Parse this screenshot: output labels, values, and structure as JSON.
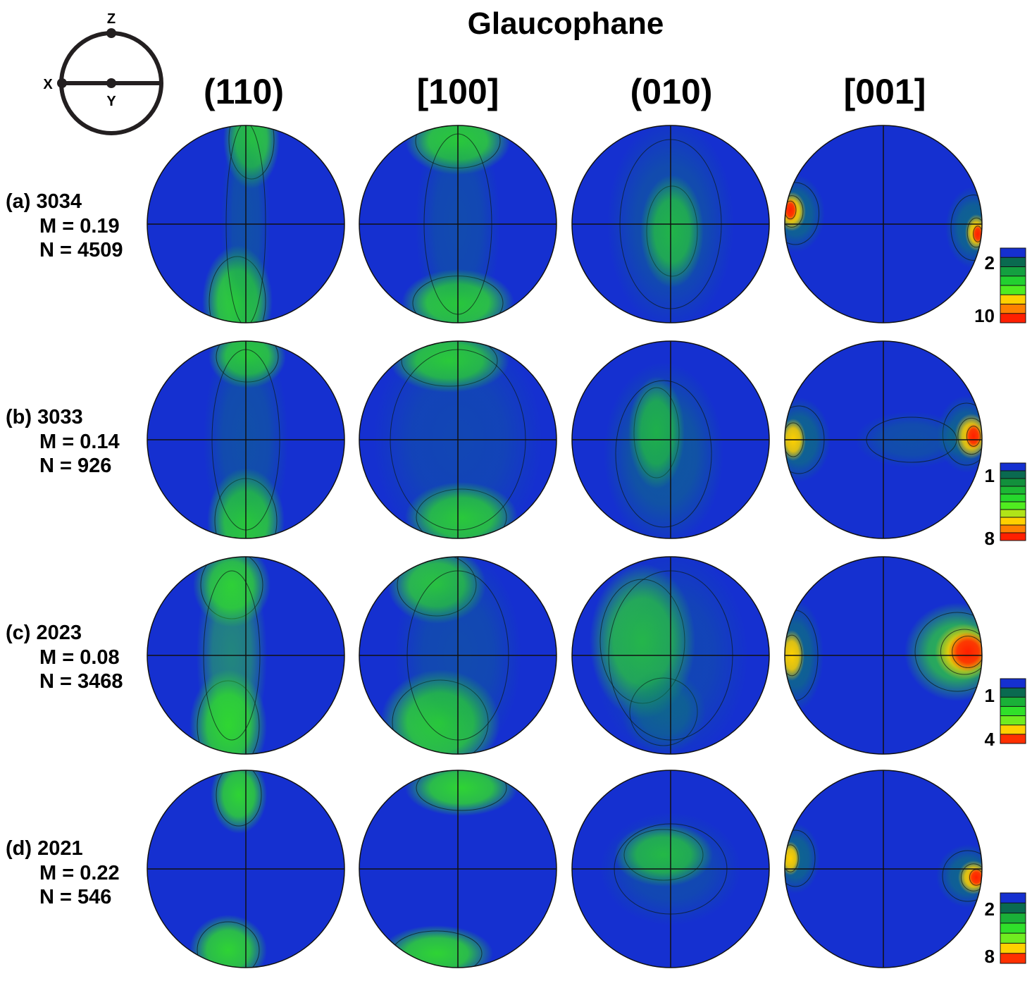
{
  "title": "Glaucophane",
  "reference_frame": {
    "labels": {
      "x": "X",
      "y": "Y",
      "z": "Z"
    }
  },
  "columns": [
    "(110)",
    "[100]",
    "(010)",
    "[001]"
  ],
  "rows": [
    {
      "label": "(a) 3034",
      "m": "M = 0.19",
      "n": "N = 4509",
      "scale": {
        "ticks": [
          {
            "value": 2,
            "label": "2"
          },
          {
            "value": 10,
            "label": "10"
          }
        ],
        "colors": [
          "#1530d0",
          "#0a6a50",
          "#14a040",
          "#22d030",
          "#50ec20",
          "#ffd000",
          "#ff8000",
          "#ff2000"
        ]
      }
    },
    {
      "label": "(b) 3033",
      "m": "M = 0.14",
      "n": "N = 926",
      "scale": {
        "ticks": [
          {
            "value": 1,
            "label": "1"
          },
          {
            "value": 8,
            "label": "8"
          }
        ],
        "colors": [
          "#1530d0",
          "#0a6a50",
          "#12903c",
          "#1cb834",
          "#26d82c",
          "#50ec20",
          "#b0e418",
          "#ffd000",
          "#ff8000",
          "#ff2000"
        ]
      }
    },
    {
      "label": "(c) 2023",
      "m": "M = 0.08",
      "n": "N = 3468",
      "scale": {
        "ticks": [
          {
            "value": 1,
            "label": "1"
          },
          {
            "value": 4,
            "label": "4"
          }
        ],
        "colors": [
          "#1530d0",
          "#0a6a50",
          "#1ab038",
          "#30e02a",
          "#70ec20",
          "#ffd000",
          "#ff3000"
        ]
      }
    },
    {
      "label": "(d) 2021",
      "m": "M = 0.22",
      "n": "N = 546",
      "scale": {
        "ticks": [
          {
            "value": 2,
            "label": "2"
          },
          {
            "value": 8,
            "label": "8"
          }
        ],
        "colors": [
          "#1530d0",
          "#0a6a50",
          "#1ab038",
          "#30e02a",
          "#70ec20",
          "#ffd000",
          "#ff3000"
        ]
      }
    }
  ],
  "colors": {
    "background": "#1530d0",
    "low": "#0a8a60",
    "mid": "#30dc2c",
    "high_yellow": "#ffd000",
    "high_red": "#ff2000"
  }
}
